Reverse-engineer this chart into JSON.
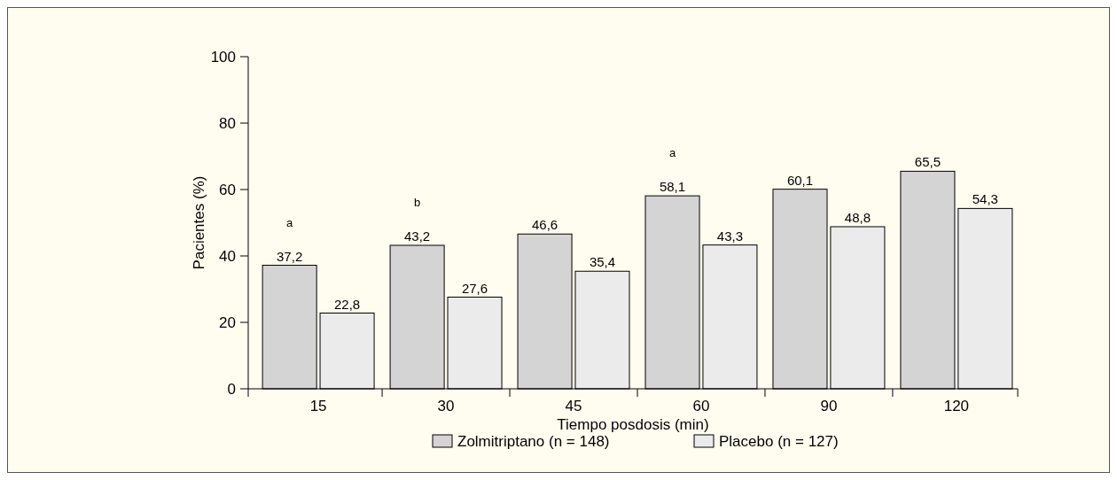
{
  "chart_data": {
    "type": "bar",
    "xlabel": "Tiempo posdosis (min)",
    "ylabel": "Pacientes (%)",
    "categories": [
      "15",
      "30",
      "45",
      "60",
      "90",
      "120"
    ],
    "series": [
      {
        "name": "Zolmitriptano (n = 148)",
        "color": "#d4d4d4",
        "values": [
          37.2,
          43.2,
          46.6,
          58.1,
          60.1,
          65.5
        ],
        "value_labels": [
          "37,2",
          "43,2",
          "46,6",
          "58,1",
          "60,1",
          "65,5"
        ]
      },
      {
        "name": "Placebo (n = 127)",
        "color": "#ebebeb",
        "values": [
          22.8,
          27.6,
          35.4,
          43.3,
          48.8,
          54.3
        ],
        "value_labels": [
          "22,8",
          "27,6",
          "35,4",
          "43,3",
          "48,8",
          "54,3"
        ]
      }
    ],
    "ylim": [
      0,
      100
    ],
    "yticks": [
      0,
      20,
      40,
      60,
      80,
      100
    ],
    "grid": false,
    "legend": "bottom",
    "annotations": [
      "a",
      "b",
      "a"
    ]
  }
}
